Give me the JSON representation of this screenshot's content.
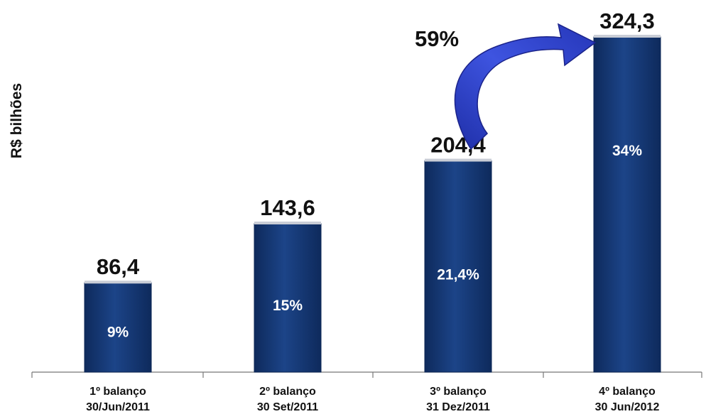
{
  "chart_data": {
    "type": "bar",
    "ylabel": "R$ bilhões",
    "categories": [
      "1º  balanço\n30/Jun/2011",
      "2º balanço\n30 Set/2011",
      "3º balanço\n31 Dez/2011",
      "4º balanço\n30 Jun/2012"
    ],
    "values": [
      86.4,
      143.6,
      204.4,
      324.3
    ],
    "value_labels": [
      "86,4",
      "143,6",
      "204,4",
      "324,3"
    ],
    "inner_labels": [
      "9%",
      "15%",
      "21,4%",
      "34%"
    ],
    "ylim": [
      0,
      324.3
    ],
    "grid": false,
    "colors": {
      "bar": "#153a75",
      "bar_edge": "#0b2554",
      "arrow": "#2f3fc4"
    },
    "annotation": {
      "text": "59%",
      "arrow_from": "3º balanço",
      "arrow_to": "4º balanço"
    }
  }
}
